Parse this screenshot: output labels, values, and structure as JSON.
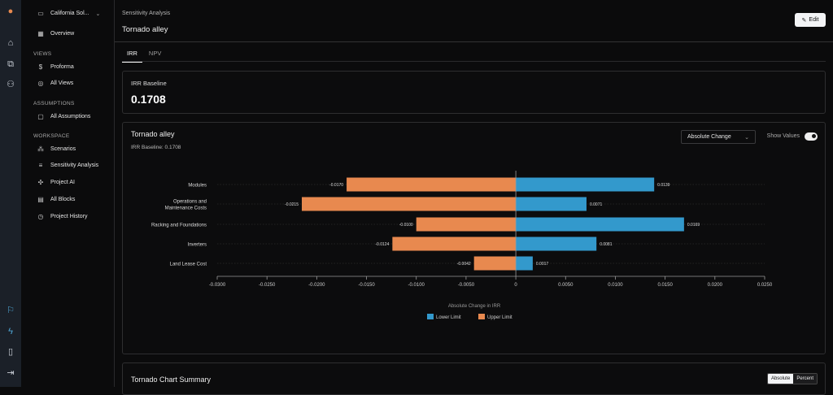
{
  "rail": {
    "icons": [
      "logo-icon",
      "home-icon",
      "copy-icon",
      "users-icon",
      "flag-icon",
      "bolt-icon",
      "device-icon",
      "logout-icon"
    ]
  },
  "sidebar": {
    "project": "California Sol...",
    "overview": "Overview",
    "sections": {
      "views": "VIEWS",
      "assumptions": "ASSUMPTIONS",
      "workspace": "WORKSPACE"
    },
    "items": {
      "proforma": "Proforma",
      "all_views": "All Views",
      "all_assumptions": "All Assumptions",
      "scenarios": "Scenarios",
      "sensitivity": "Sensitivity Analysis",
      "project_ai": "Project AI",
      "all_blocks": "All Blocks",
      "history": "Project History"
    }
  },
  "header": {
    "breadcrumb": "Sensitivity Analysis",
    "title": "Tornado alley",
    "edit": "Edit"
  },
  "tabs": [
    "IRR",
    "NPV"
  ],
  "baseline": {
    "label": "IRR Baseline",
    "value": "0.1708"
  },
  "chart_card": {
    "title": "Tornado alley",
    "subtitle": "IRR Baseline: 0.1708",
    "mode": "Absolute Change",
    "show_values_label": "Show Values",
    "show_values": true
  },
  "chart_data": {
    "type": "bar",
    "orientation": "horizontal",
    "stacked": "diverging",
    "categories": [
      "Modules",
      "Operations and Maintenance Costs",
      "Racking and Foundations",
      "Inverters",
      "Land Lease Cost"
    ],
    "series": [
      {
        "name": "Lower Limit",
        "color": "#3399cc",
        "values": [
          0.0139,
          0.0071,
          0.0169,
          0.0081,
          0.0017
        ]
      },
      {
        "name": "Upper Limit",
        "color": "#e8894f",
        "values": [
          -0.017,
          -0.0215,
          -0.01,
          -0.0124,
          -0.0042
        ]
      }
    ],
    "value_labels": {
      "Lower Limit": [
        "0.0139",
        "0.0071",
        "0.0169",
        "0.0081",
        "0.0017"
      ],
      "Upper Limit": [
        "-0.0170",
        "-0.0215",
        "-0.0100",
        "-0.0124",
        "-0.0042"
      ]
    },
    "xlim": [
      -0.03,
      0.025
    ],
    "xticks": [
      -0.03,
      -0.025,
      -0.02,
      -0.015,
      -0.01,
      -0.005,
      0,
      0.005,
      0.01,
      0.015,
      0.02,
      0.025
    ],
    "xtick_labels": [
      "-0.0300",
      "-0.0250",
      "-0.0200",
      "-0.0150",
      "-0.0100",
      "-0.0050",
      "0",
      "0.0050",
      "0.0100",
      "0.0150",
      "0.0200",
      "0.0250"
    ],
    "xlabel": "Absolute Change in IRR",
    "legend": "bottom",
    "grid": false
  },
  "summary": {
    "title": "Tornado Chart Summary",
    "absolute": "Absolute",
    "percent": "Percent"
  }
}
